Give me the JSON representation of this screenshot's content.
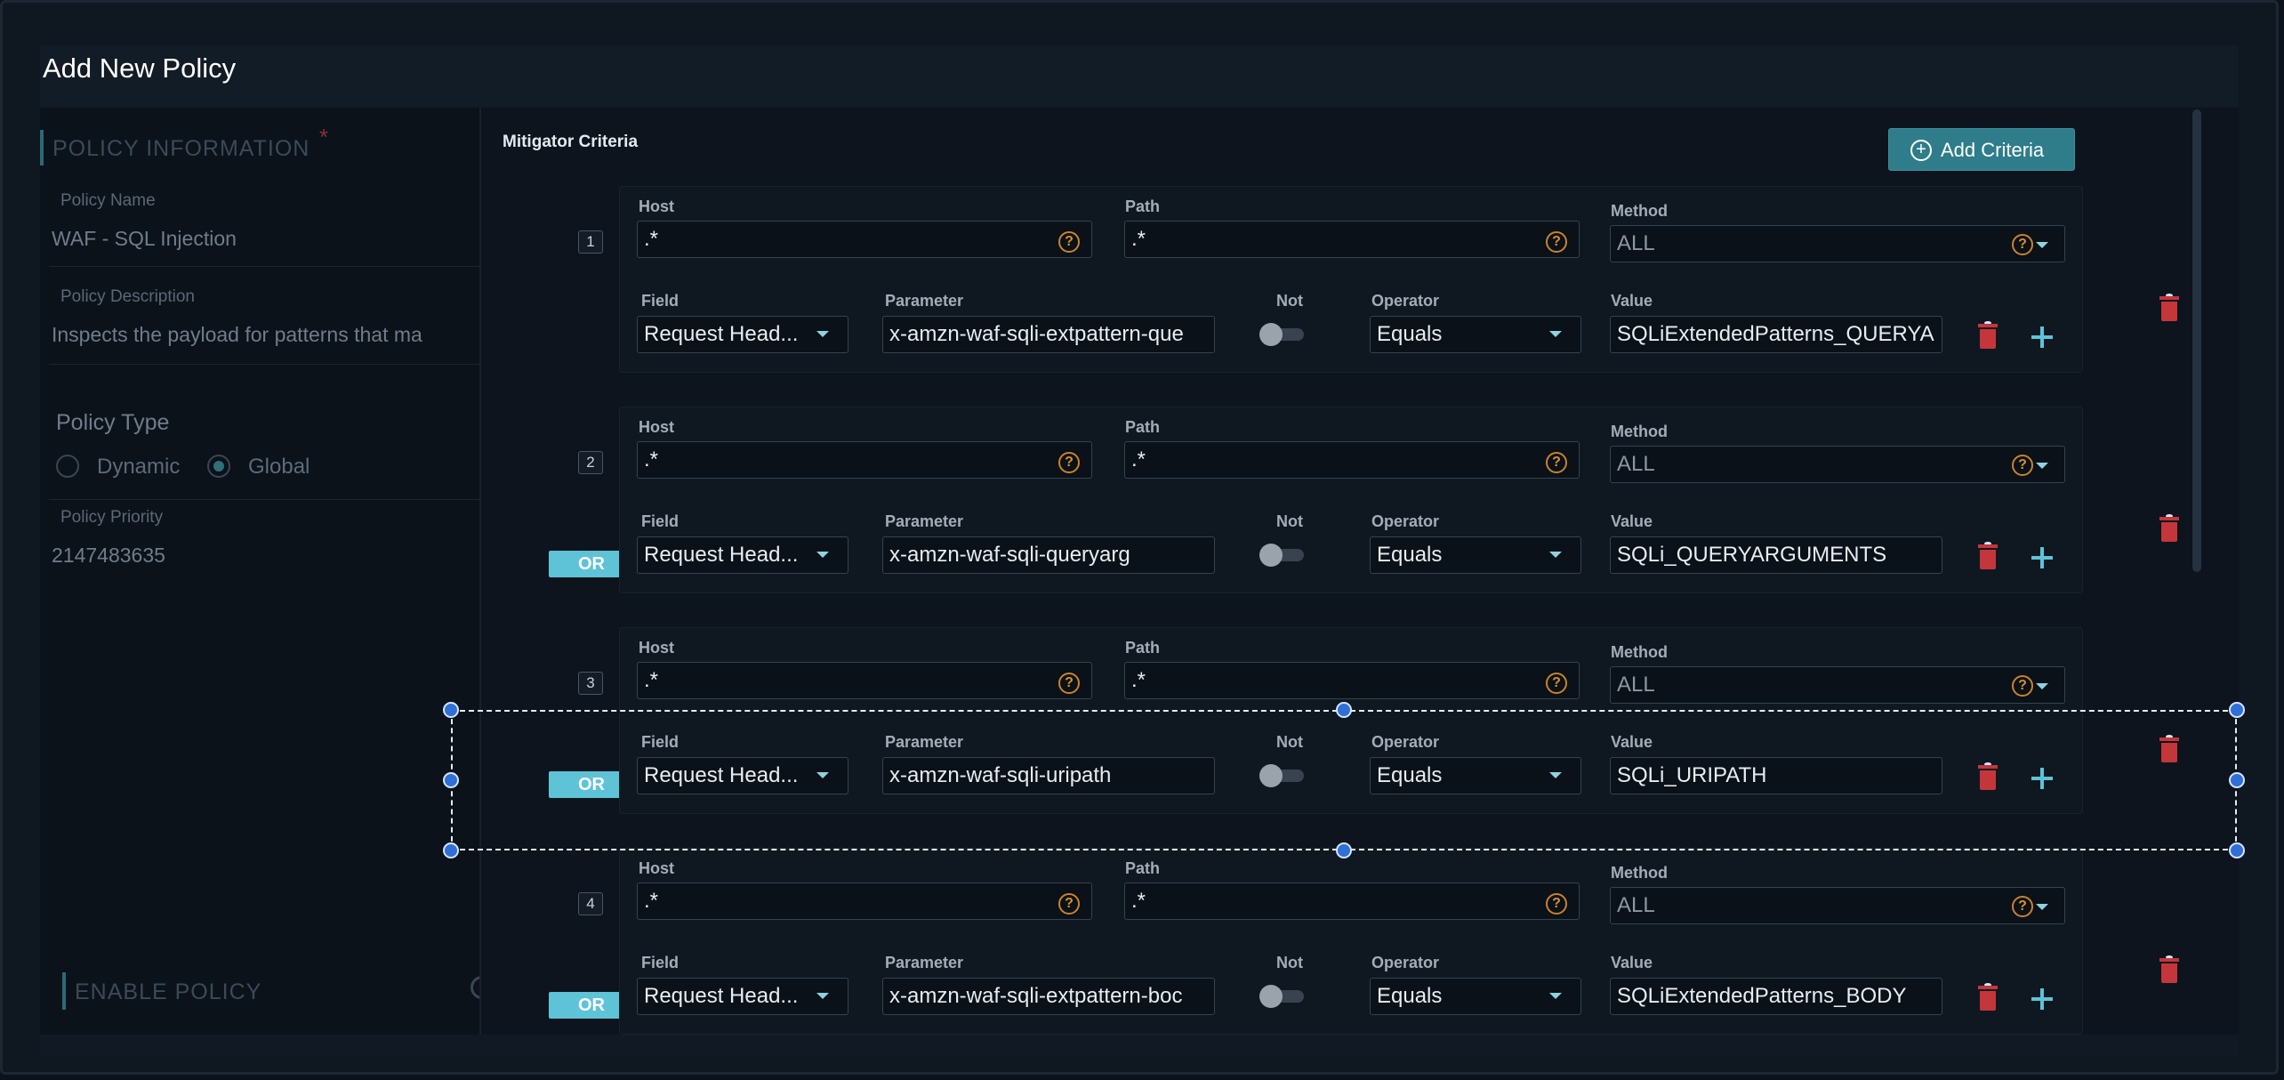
{
  "modal": {
    "title": "Add New Policy"
  },
  "policy_info": {
    "section_title": "POLICY INFORMATION",
    "required_marker": "*",
    "name_label": "Policy Name",
    "name_value": "WAF - SQL Injection",
    "description_label": "Policy Description",
    "description_value": "Inspects the payload for patterns that ma",
    "type_title": "Policy Type",
    "type_options": [
      "Dynamic",
      "Global"
    ],
    "type_selected": "Global",
    "priority_label": "Policy Priority",
    "priority_value": "2147483635",
    "enable_title": "ENABLE POLICY"
  },
  "criteria": {
    "title": "Mitigator Criteria",
    "add_button_label": "Add Criteria",
    "labels": {
      "host": "Host",
      "path": "Path",
      "method": "Method",
      "field": "Field",
      "parameter": "Parameter",
      "not": "Not",
      "operator": "Operator",
      "value": "Value"
    },
    "help_glyph": "?",
    "items": [
      {
        "number": "1",
        "connector": "",
        "host": ".*",
        "path": ".*",
        "method": "ALL",
        "field": "Request Head...",
        "parameter": "x-amzn-waf-sqli-extpattern-que",
        "not": false,
        "operator": "Equals",
        "value": "SQLiExtendedPatterns_QUERYA"
      },
      {
        "number": "2",
        "connector": "OR",
        "host": ".*",
        "path": ".*",
        "method": "ALL",
        "field": "Request Head...",
        "parameter": "x-amzn-waf-sqli-queryarg",
        "not": false,
        "operator": "Equals",
        "value": "SQLi_QUERYARGUMENTS"
      },
      {
        "number": "3",
        "connector": "OR",
        "host": ".*",
        "path": ".*",
        "method": "ALL",
        "field": "Request Head...",
        "parameter": "x-amzn-waf-sqli-uripath",
        "not": false,
        "operator": "Equals",
        "value": "SQLi_URIPATH"
      },
      {
        "number": "4",
        "connector": "OR",
        "host": ".*",
        "path": ".*",
        "method": "ALL",
        "field": "Request Head...",
        "parameter": "x-amzn-waf-sqli-extpattern-boc",
        "not": false,
        "operator": "Equals",
        "value": "SQLiExtendedPatterns_BODY"
      }
    ]
  },
  "colors": {
    "accent": "#2f7d8a",
    "or_badge": "#5ec3d6",
    "delete": "#c5363a",
    "help": "#d7902f",
    "selection_handle": "#2f6fd6"
  }
}
